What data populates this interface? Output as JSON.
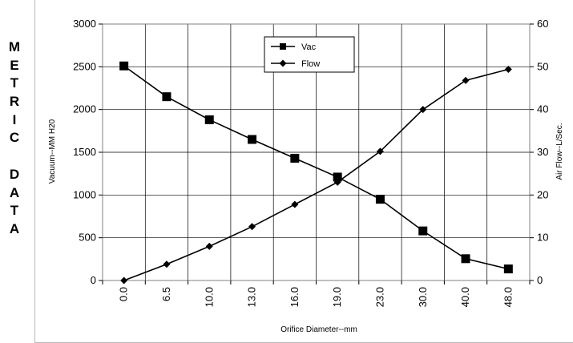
{
  "side_label": [
    "M",
    "E",
    "T",
    "R",
    "I",
    "C",
    "",
    "D",
    "A",
    "T",
    "A"
  ],
  "chart_data": {
    "type": "line",
    "categories": [
      "0.0",
      "6.5",
      "10.0",
      "13.0",
      "16.0",
      "19.0",
      "23.0",
      "30.0",
      "40.0",
      "48.0"
    ],
    "xlabel": "Orifice Diameter--mm",
    "ylabel": "Vacuum--MM H20",
    "y2label": "Air Flow--L/Sec.",
    "ylim": [
      0,
      3000
    ],
    "y2lim": [
      0,
      60
    ],
    "yticks": [
      0,
      500,
      1000,
      1500,
      2000,
      2500,
      3000
    ],
    "y2ticks": [
      0,
      10,
      20,
      30,
      40,
      50,
      60
    ],
    "grid": true,
    "legend": "top-center",
    "series": [
      {
        "name": "Vac",
        "axis": "left",
        "marker": "square",
        "values": [
          2510,
          2150,
          1880,
          1650,
          1430,
          1210,
          950,
          580,
          255,
          135
        ]
      },
      {
        "name": "Flow",
        "axis": "right",
        "marker": "diamond",
        "values": [
          0,
          3.8,
          8.0,
          12.6,
          17.8,
          23.0,
          30.2,
          40.0,
          46.8,
          49.4
        ]
      }
    ],
    "colors": {
      "line": "#000000",
      "grid": "#000000",
      "axis": "#808080"
    }
  }
}
